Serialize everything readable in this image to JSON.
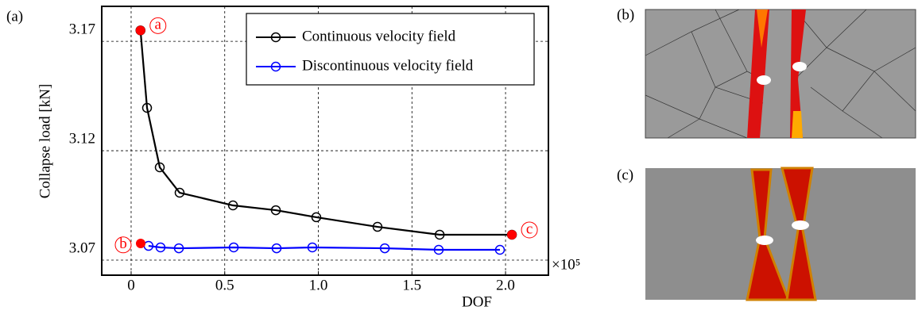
{
  "chart_data": {
    "type": "line",
    "panel_label": "(a)",
    "ylabel": "Collapse load [kN]",
    "xlabel": "DOF",
    "x_multiplier": "×10⁵",
    "xlim": [
      -0.157,
      2.229
    ],
    "ylim": [
      3.0631,
      3.186
    ],
    "xticks": [
      0,
      0.5,
      {
        "value": 1,
        "label": "1.0"
      },
      1.5,
      {
        "value": 2,
        "label": "2.0"
      }
    ],
    "yticks": [
      3.07,
      3.12,
      3.17
    ],
    "grid": true,
    "legend": "upper right",
    "series": [
      {
        "name": "Continuous velocity field",
        "color": "#000000",
        "x": [
          0.05,
          0.085,
          0.153,
          0.259,
          0.544,
          0.773,
          0.989,
          1.316,
          1.648,
          2.034
        ],
        "values": [
          3.175,
          3.1396,
          3.1124,
          3.1008,
          3.095,
          3.0928,
          3.0896,
          3.0852,
          3.0816,
          3.0816
        ]
      },
      {
        "name": "Discontinuous velocity field",
        "color": "#0000ff",
        "x": [
          0.093,
          0.157,
          0.255,
          0.548,
          0.777,
          0.968,
          1.355,
          1.643,
          1.97
        ],
        "values": [
          3.0765,
          3.0758,
          3.0754,
          3.0758,
          3.0754,
          3.0758,
          3.0754,
          3.0747,
          3.0747
        ]
      }
    ],
    "points_color": "#ff0000",
    "points": [
      {
        "label": "a",
        "x": 0.05,
        "y": 3.175
      },
      {
        "label": "b",
        "x": 0.051,
        "y": 3.0776
      },
      {
        "label": "c",
        "x": 2.034,
        "y": 3.0816
      }
    ],
    "insets": [
      "(b)",
      "(c)"
    ]
  }
}
